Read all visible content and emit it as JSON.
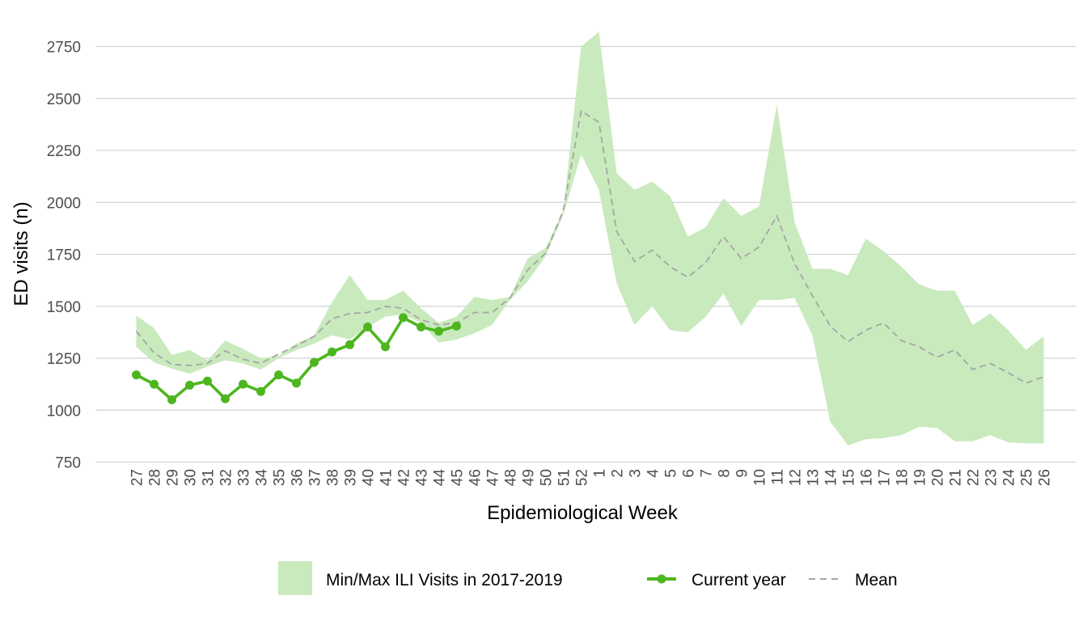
{
  "chart_data": {
    "type": "line",
    "xlabel": "Epidemiological Week",
    "ylabel": "ED visits (n)",
    "ylim": [
      750,
      2750
    ],
    "yticks": [
      750,
      1000,
      1250,
      1500,
      1750,
      2000,
      2250,
      2500,
      2750
    ],
    "grid": "horizontal",
    "legend_position": "bottom",
    "categories": [
      "27",
      "28",
      "29",
      "30",
      "31",
      "32",
      "33",
      "34",
      "35",
      "36",
      "37",
      "38",
      "39",
      "40",
      "41",
      "42",
      "43",
      "44",
      "45",
      "46",
      "47",
      "48",
      "49",
      "50",
      "51",
      "52",
      "1",
      "2",
      "3",
      "4",
      "5",
      "6",
      "7",
      "8",
      "9",
      "10",
      "11",
      "12",
      "13",
      "14",
      "15",
      "16",
      "17",
      "18",
      "19",
      "20",
      "21",
      "22",
      "23",
      "24",
      "25",
      "26"
    ],
    "band": {
      "name": "Min/Max ILI Visits in 2017-2019",
      "color": "#c9eabd",
      "min": [
        1305,
        1230,
        1200,
        1175,
        1210,
        1240,
        1225,
        1195,
        1250,
        1290,
        1320,
        1360,
        1340,
        1400,
        1450,
        1460,
        1420,
        1325,
        1340,
        1370,
        1410,
        1530,
        1620,
        1740,
        1940,
        2230,
        2060,
        1610,
        1410,
        1500,
        1385,
        1375,
        1450,
        1560,
        1405,
        1530,
        1530,
        1540,
        1360,
        945,
        830,
        860,
        865,
        880,
        920,
        915,
        850,
        850,
        880,
        845,
        840,
        840
      ],
      "max": [
        1455,
        1395,
        1265,
        1290,
        1240,
        1335,
        1295,
        1250,
        1260,
        1320,
        1360,
        1520,
        1650,
        1530,
        1530,
        1575,
        1490,
        1420,
        1450,
        1545,
        1530,
        1545,
        1730,
        1780,
        1960,
        2750,
        2820,
        2140,
        2060,
        2100,
        2030,
        1835,
        1880,
        2020,
        1935,
        1980,
        2470,
        1905,
        1680,
        1680,
        1650,
        1825,
        1765,
        1690,
        1605,
        1575,
        1575,
        1410,
        1465,
        1385,
        1290,
        1355
      ]
    },
    "series": [
      {
        "name": "Current year",
        "color": "#4db61f",
        "style": "solid-markers",
        "values": [
          1170,
          1125,
          1050,
          1120,
          1140,
          1055,
          1125,
          1090,
          1170,
          1130,
          1230,
          1280,
          1315,
          1400,
          1305,
          1445,
          1400,
          1380,
          1405,
          null,
          null,
          null,
          null,
          null,
          null,
          null,
          null,
          null,
          null,
          null,
          null,
          null,
          null,
          null,
          null,
          null,
          null,
          null,
          null,
          null,
          null,
          null,
          null,
          null,
          null,
          null,
          null,
          null,
          null,
          null,
          null,
          null
        ]
      },
      {
        "name": "Mean",
        "color": "#a5a5a5",
        "style": "dashed",
        "values": [
          1380,
          1275,
          1220,
          1215,
          1225,
          1285,
          1245,
          1225,
          1270,
          1310,
          1355,
          1440,
          1465,
          1470,
          1500,
          1490,
          1435,
          1410,
          1420,
          1470,
          1470,
          1540,
          1675,
          1755,
          1960,
          2440,
          2385,
          1860,
          1715,
          1770,
          1690,
          1640,
          1710,
          1835,
          1730,
          1785,
          1935,
          1705,
          1550,
          1405,
          1330,
          1385,
          1420,
          1335,
          1305,
          1255,
          1290,
          1195,
          1225,
          1180,
          1130,
          1160
        ]
      }
    ]
  }
}
